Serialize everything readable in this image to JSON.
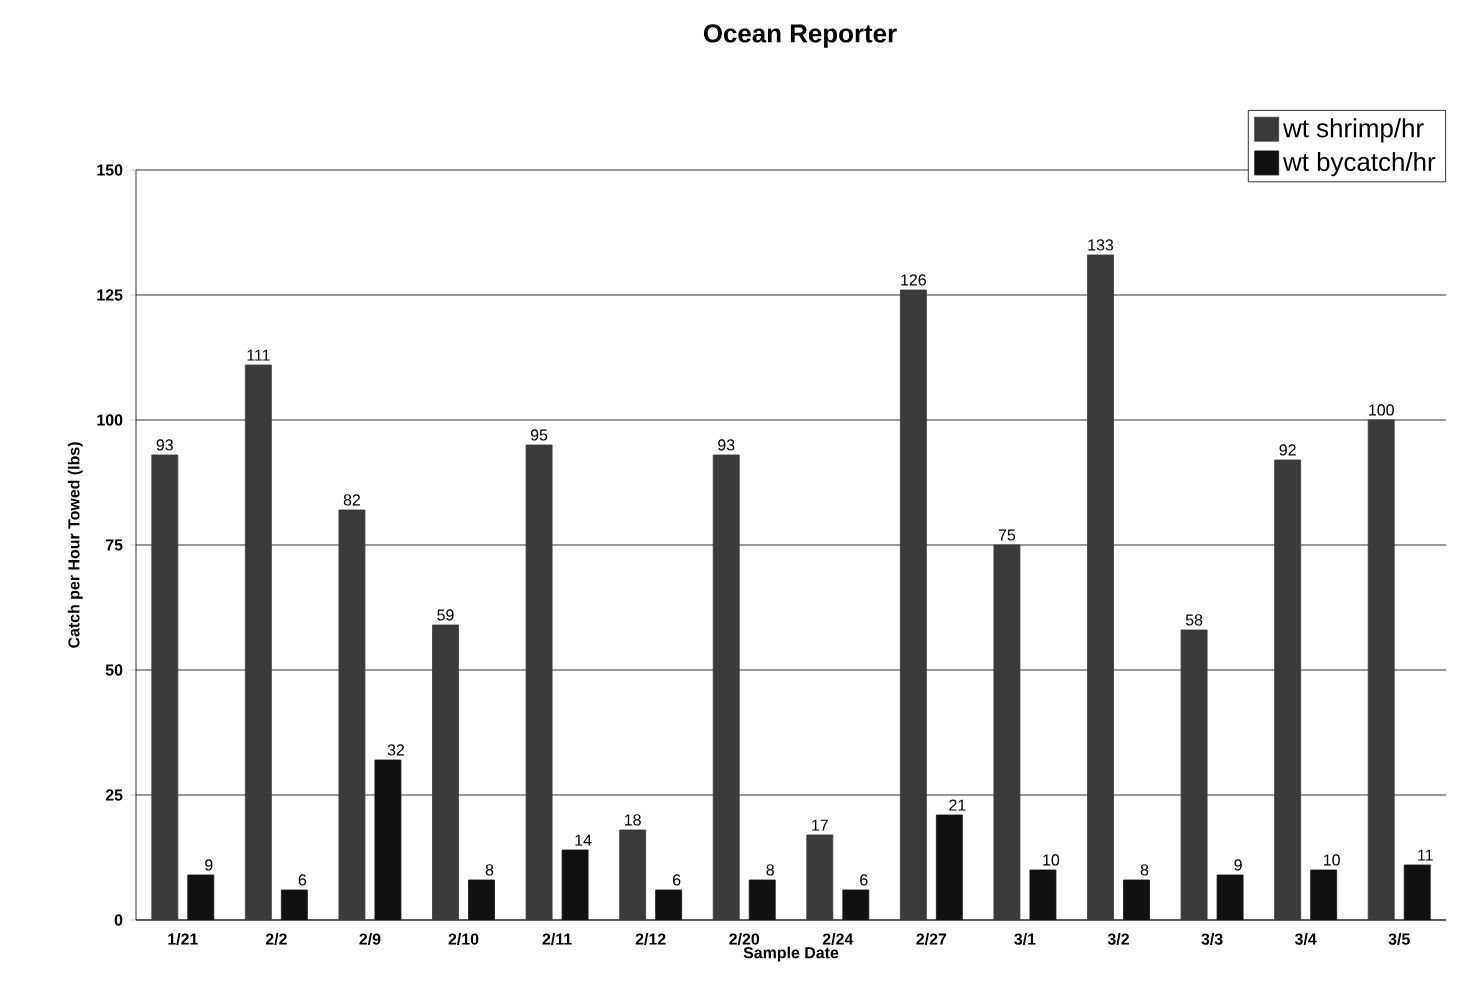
{
  "chart_data": {
    "type": "bar",
    "title": "Ocean Reporter",
    "xlabel": "Sample Date",
    "ylabel": "Catch per Hour Towed (lbs)",
    "categories": [
      "1/21",
      "2/2",
      "2/9",
      "2/10",
      "2/11",
      "2/12",
      "2/20",
      "2/24",
      "2/27",
      "3/1",
      "3/2",
      "3/3",
      "3/4",
      "3/5"
    ],
    "series": [
      {
        "name": "wt shrimp/hr",
        "color": "#3a3a3a",
        "values": [
          93,
          111,
          82,
          59,
          95,
          18,
          93,
          17,
          126,
          75,
          133,
          58,
          92,
          100
        ]
      },
      {
        "name": "wt bycatch/hr",
        "color": "#111111",
        "values": [
          9,
          6,
          32,
          8,
          14,
          6,
          8,
          6,
          21,
          10,
          8,
          9,
          10,
          11
        ]
      }
    ],
    "ylim": [
      0,
      150
    ],
    "yticks": [
      0,
      25,
      50,
      75,
      100,
      125,
      150
    ],
    "grid": "y",
    "legend": "top right",
    "data_labels": true
  }
}
